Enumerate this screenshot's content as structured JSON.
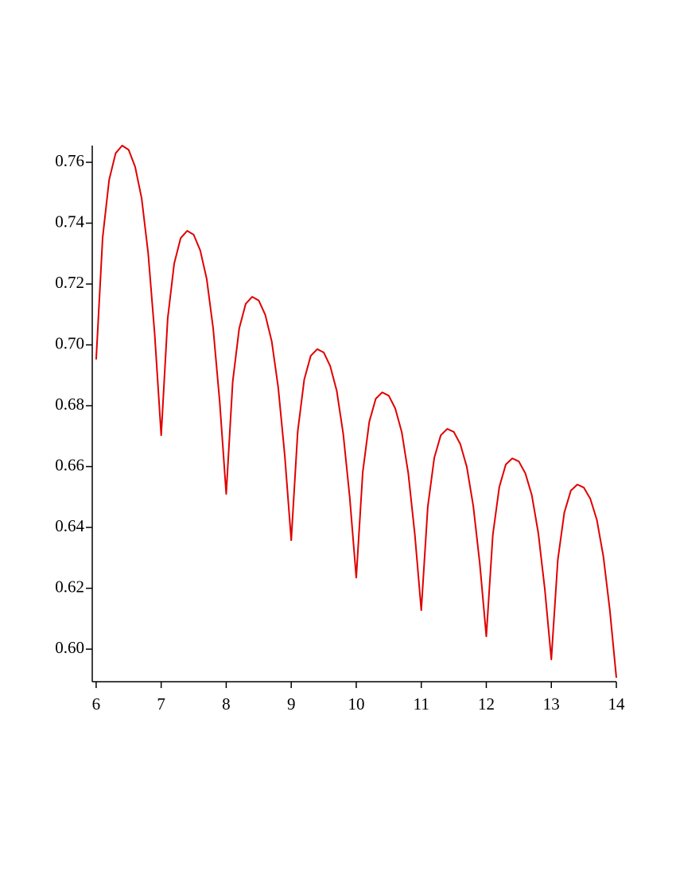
{
  "chart_data": {
    "type": "line",
    "x": [
      6.0,
      6.1,
      6.2,
      6.3,
      6.4,
      6.5,
      6.6,
      6.7,
      6.8,
      6.9,
      7.0,
      7.1,
      7.2,
      7.3,
      7.4,
      7.5,
      7.6,
      7.7,
      7.8,
      7.9,
      8.0,
      8.1,
      8.2,
      8.3,
      8.4,
      8.5,
      8.6,
      8.7,
      8.8,
      8.9,
      9.0,
      9.1,
      9.2,
      9.3,
      9.4,
      9.5,
      9.6,
      9.7,
      9.8,
      9.9,
      10.0,
      10.1,
      10.2,
      10.3,
      10.4,
      10.5,
      10.6,
      10.7,
      10.8,
      10.9,
      11.0,
      11.1,
      11.2,
      11.3,
      11.4,
      11.5,
      11.6,
      11.7,
      11.8,
      11.9,
      12.0,
      12.1,
      12.2,
      12.3,
      12.4,
      12.5,
      12.6,
      12.7,
      12.8,
      12.9,
      13.0,
      13.1,
      13.2,
      13.3,
      13.4,
      13.5,
      13.6,
      13.7,
      13.8,
      13.9,
      14.0
    ],
    "values": [
      0.6952,
      0.7353,
      0.7543,
      0.763,
      0.7655,
      0.7641,
      0.7585,
      0.7481,
      0.7301,
      0.7036,
      0.6703,
      0.7086,
      0.7267,
      0.7351,
      0.7375,
      0.7362,
      0.7311,
      0.7217,
      0.7053,
      0.6813,
      0.651,
      0.6879,
      0.7054,
      0.7135,
      0.7158,
      0.7146,
      0.7099,
      0.7012,
      0.686,
      0.6638,
      0.6358,
      0.6716,
      0.6886,
      0.6964,
      0.6986,
      0.6975,
      0.693,
      0.6849,
      0.6707,
      0.6498,
      0.6235,
      0.6582,
      0.6747,
      0.6823,
      0.6844,
      0.6833,
      0.6791,
      0.6713,
      0.6578,
      0.6379,
      0.6128,
      0.6468,
      0.6629,
      0.6703,
      0.6724,
      0.6714,
      0.6674,
      0.6599,
      0.647,
      0.6281,
      0.6042,
      0.6375,
      0.6533,
      0.6607,
      0.6627,
      0.6617,
      0.6578,
      0.6506,
      0.6381,
      0.6197,
      0.5966,
      0.6294,
      0.6449,
      0.6521,
      0.6541,
      0.6531,
      0.6494,
      0.6425,
      0.6305,
      0.6128,
      0.5906
    ],
    "color": "#e00000",
    "xlim": [
      5.94,
      14
    ],
    "ylim": [
      0.5893,
      0.7655
    ],
    "xticks": [
      6,
      7,
      8,
      9,
      10,
      11,
      12,
      13,
      14
    ],
    "yticks": [
      {
        "value": 0.6,
        "label": "0.60"
      },
      0.62,
      0.64,
      0.66,
      0.68,
      {
        "value": 0.7,
        "label": "0.70"
      },
      0.72,
      0.74,
      0.76
    ]
  }
}
